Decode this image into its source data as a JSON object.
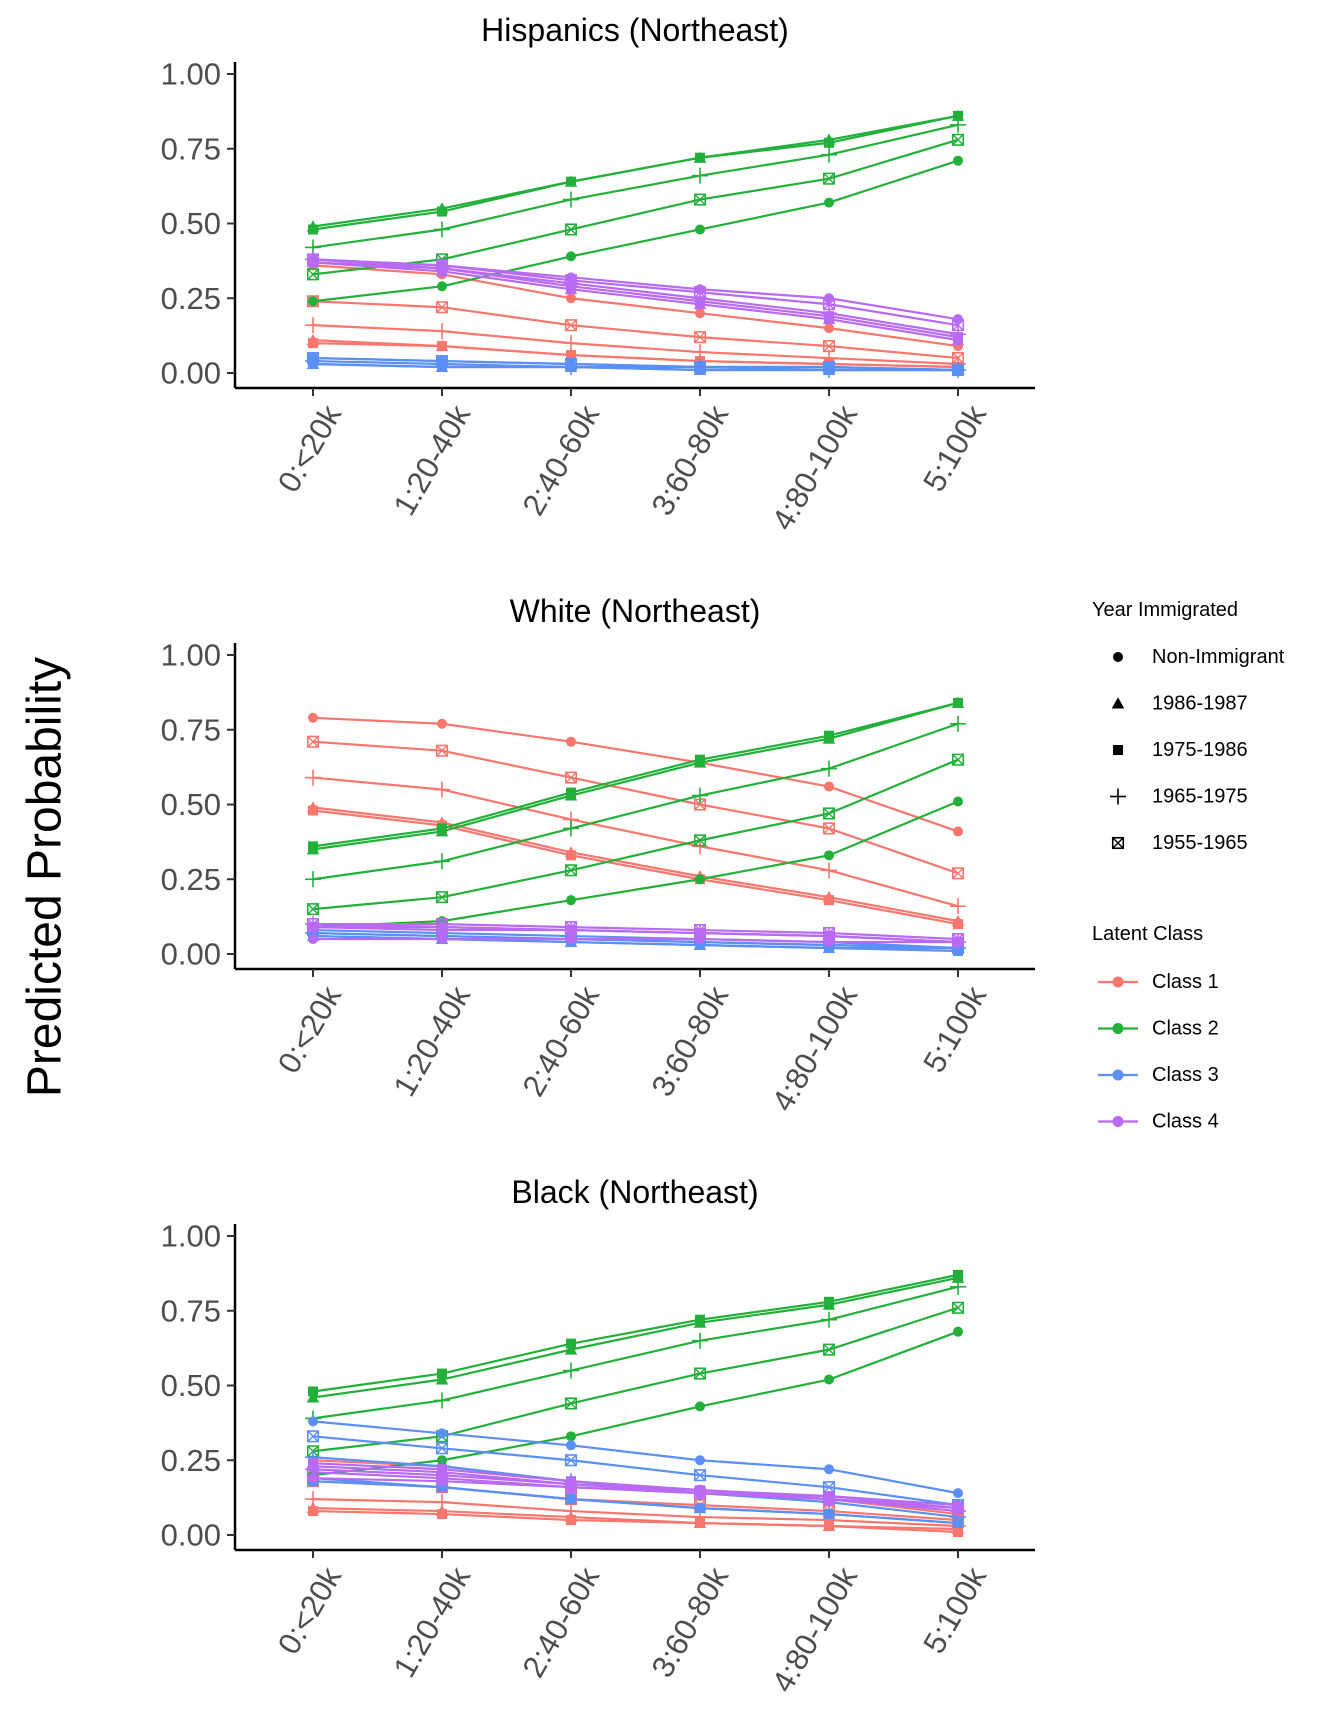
{
  "figure": {
    "ylabel": "Predicted Probability",
    "x_categories": [
      "0:<20k",
      "1:20-40k",
      "2:40-60k",
      "3:60-80k",
      "4:80-100k",
      "5:100k"
    ],
    "y_ticks": [
      "0.00",
      "0.25",
      "0.50",
      "0.75",
      "1.00"
    ],
    "legend_year": {
      "title": "Year Immigrated",
      "items": [
        {
          "label": "Non-Immigrant",
          "shape": "circle"
        },
        {
          "label": "1986-1987",
          "shape": "triangle"
        },
        {
          "label": "1975-1986",
          "shape": "square"
        },
        {
          "label": "1965-1975",
          "shape": "plus"
        },
        {
          "label": "1955-1965",
          "shape": "boxed-x"
        }
      ]
    },
    "legend_class": {
      "title": "Latent Class",
      "items": [
        {
          "label": "Class 1",
          "color": "#F8766D"
        },
        {
          "label": "Class 2",
          "color": "#22B03A"
        },
        {
          "label": "Class 3",
          "color": "#5B8FF6"
        },
        {
          "label": "Class 4",
          "color": "#B86BF2"
        }
      ]
    }
  },
  "chart_data": [
    {
      "type": "line",
      "title": "Hispanics (Northeast)",
      "xlabel": "",
      "ylabel": "Predicted Probability",
      "categories": [
        "0:<20k",
        "1:20-40k",
        "2:40-60k",
        "3:60-80k",
        "4:80-100k",
        "5:100k"
      ],
      "ylim": [
        0,
        1
      ],
      "grid": false,
      "series": [
        {
          "class": "Class 1",
          "year": "Non-Immigrant",
          "values": [
            0.36,
            0.33,
            0.25,
            0.2,
            0.15,
            0.09
          ]
        },
        {
          "class": "Class 1",
          "year": "1986-1987",
          "values": [
            0.11,
            0.09,
            0.06,
            0.04,
            0.03,
            0.02
          ]
        },
        {
          "class": "Class 1",
          "year": "1975-1986",
          "values": [
            0.1,
            0.09,
            0.06,
            0.04,
            0.03,
            0.02
          ]
        },
        {
          "class": "Class 1",
          "year": "1965-1975",
          "values": [
            0.16,
            0.14,
            0.1,
            0.07,
            0.05,
            0.03
          ]
        },
        {
          "class": "Class 1",
          "year": "1955-1965",
          "values": [
            0.24,
            0.22,
            0.16,
            0.12,
            0.09,
            0.05
          ]
        },
        {
          "class": "Class 2",
          "year": "Non-Immigrant",
          "values": [
            0.24,
            0.29,
            0.39,
            0.48,
            0.57,
            0.71
          ]
        },
        {
          "class": "Class 2",
          "year": "1986-1987",
          "values": [
            0.49,
            0.55,
            0.64,
            0.72,
            0.78,
            0.86
          ]
        },
        {
          "class": "Class 2",
          "year": "1975-1986",
          "values": [
            0.48,
            0.54,
            0.64,
            0.72,
            0.77,
            0.86
          ]
        },
        {
          "class": "Class 2",
          "year": "1965-1975",
          "values": [
            0.42,
            0.48,
            0.58,
            0.66,
            0.73,
            0.83
          ]
        },
        {
          "class": "Class 2",
          "year": "1955-1965",
          "values": [
            0.33,
            0.38,
            0.48,
            0.58,
            0.65,
            0.78
          ]
        },
        {
          "class": "Class 3",
          "year": "Non-Immigrant",
          "values": [
            0.05,
            0.04,
            0.03,
            0.02,
            0.02,
            0.01
          ]
        },
        {
          "class": "Class 3",
          "year": "1986-1987",
          "values": [
            0.03,
            0.02,
            0.02,
            0.01,
            0.01,
            0.01
          ]
        },
        {
          "class": "Class 3",
          "year": "1975-1986",
          "values": [
            0.03,
            0.02,
            0.02,
            0.01,
            0.01,
            0.01
          ]
        },
        {
          "class": "Class 3",
          "year": "1965-1975",
          "values": [
            0.04,
            0.03,
            0.02,
            0.02,
            0.01,
            0.01
          ]
        },
        {
          "class": "Class 3",
          "year": "1955-1965",
          "values": [
            0.05,
            0.04,
            0.03,
            0.02,
            0.02,
            0.01
          ]
        },
        {
          "class": "Class 4",
          "year": "Non-Immigrant",
          "values": [
            0.38,
            0.36,
            0.32,
            0.28,
            0.25,
            0.18
          ]
        },
        {
          "class": "Class 4",
          "year": "1986-1987",
          "values": [
            0.37,
            0.34,
            0.28,
            0.23,
            0.18,
            0.11
          ]
        },
        {
          "class": "Class 4",
          "year": "1975-1986",
          "values": [
            0.37,
            0.35,
            0.29,
            0.24,
            0.19,
            0.12
          ]
        },
        {
          "class": "Class 4",
          "year": "1965-1975",
          "values": [
            0.38,
            0.35,
            0.3,
            0.25,
            0.2,
            0.13
          ]
        },
        {
          "class": "Class 4",
          "year": "1955-1965",
          "values": [
            0.38,
            0.36,
            0.31,
            0.27,
            0.23,
            0.16
          ]
        }
      ]
    },
    {
      "type": "line",
      "title": "White (Northeast)",
      "xlabel": "",
      "ylabel": "Predicted Probability",
      "categories": [
        "0:<20k",
        "1:20-40k",
        "2:40-60k",
        "3:60-80k",
        "4:80-100k",
        "5:100k"
      ],
      "ylim": [
        0,
        1
      ],
      "grid": false,
      "series": [
        {
          "class": "Class 1",
          "year": "Non-Immigrant",
          "values": [
            0.79,
            0.77,
            0.71,
            0.64,
            0.56,
            0.41
          ]
        },
        {
          "class": "Class 1",
          "year": "1986-1987",
          "values": [
            0.49,
            0.44,
            0.34,
            0.26,
            0.19,
            0.11
          ]
        },
        {
          "class": "Class 1",
          "year": "1975-1986",
          "values": [
            0.48,
            0.43,
            0.33,
            0.25,
            0.18,
            0.1
          ]
        },
        {
          "class": "Class 1",
          "year": "1965-1975",
          "values": [
            0.59,
            0.55,
            0.45,
            0.36,
            0.28,
            0.16
          ]
        },
        {
          "class": "Class 1",
          "year": "1955-1965",
          "values": [
            0.71,
            0.68,
            0.59,
            0.5,
            0.42,
            0.27
          ]
        },
        {
          "class": "Class 2",
          "year": "Non-Immigrant",
          "values": [
            0.09,
            0.11,
            0.18,
            0.25,
            0.33,
            0.51
          ]
        },
        {
          "class": "Class 2",
          "year": "1986-1987",
          "values": [
            0.35,
            0.41,
            0.53,
            0.64,
            0.72,
            0.84
          ]
        },
        {
          "class": "Class 2",
          "year": "1975-1986",
          "values": [
            0.36,
            0.42,
            0.54,
            0.65,
            0.73,
            0.84
          ]
        },
        {
          "class": "Class 2",
          "year": "1965-1975",
          "values": [
            0.25,
            0.31,
            0.42,
            0.53,
            0.62,
            0.77
          ]
        },
        {
          "class": "Class 2",
          "year": "1955-1965",
          "values": [
            0.15,
            0.19,
            0.28,
            0.38,
            0.47,
            0.65
          ]
        },
        {
          "class": "Class 3",
          "year": "Non-Immigrant",
          "values": [
            0.07,
            0.06,
            0.05,
            0.04,
            0.03,
            0.02
          ]
        },
        {
          "class": "Class 3",
          "year": "1986-1987",
          "values": [
            0.06,
            0.05,
            0.04,
            0.03,
            0.02,
            0.02
          ]
        },
        {
          "class": "Class 3",
          "year": "1975-1986",
          "values": [
            0.06,
            0.05,
            0.04,
            0.03,
            0.02,
            0.01
          ]
        },
        {
          "class": "Class 3",
          "year": "1965-1975",
          "values": [
            0.07,
            0.06,
            0.05,
            0.04,
            0.03,
            0.02
          ]
        },
        {
          "class": "Class 3",
          "year": "1955-1965",
          "values": [
            0.08,
            0.07,
            0.06,
            0.05,
            0.04,
            0.02
          ]
        },
        {
          "class": "Class 4",
          "year": "Non-Immigrant",
          "values": [
            0.05,
            0.05,
            0.05,
            0.05,
            0.04,
            0.04
          ]
        },
        {
          "class": "Class 4",
          "year": "1986-1987",
          "values": [
            0.09,
            0.09,
            0.08,
            0.07,
            0.06,
            0.04
          ]
        },
        {
          "class": "Class 4",
          "year": "1975-1986",
          "values": [
            0.09,
            0.08,
            0.08,
            0.07,
            0.06,
            0.04
          ]
        },
        {
          "class": "Class 4",
          "year": "1965-1975",
          "values": [
            0.1,
            0.09,
            0.08,
            0.07,
            0.06,
            0.04
          ]
        },
        {
          "class": "Class 4",
          "year": "1955-1965",
          "values": [
            0.1,
            0.1,
            0.09,
            0.08,
            0.07,
            0.05
          ]
        }
      ]
    },
    {
      "type": "line",
      "title": "Black (Northeast)",
      "xlabel": "",
      "ylabel": "Predicted Probability",
      "categories": [
        "0:<20k",
        "1:20-40k",
        "2:40-60k",
        "3:60-80k",
        "4:80-100k",
        "5:100k"
      ],
      "ylim": [
        0,
        1
      ],
      "grid": false,
      "series": [
        {
          "class": "Class 1",
          "year": "Non-Immigrant",
          "values": [
            0.25,
            0.23,
            0.18,
            0.15,
            0.12,
            0.07
          ]
        },
        {
          "class": "Class 1",
          "year": "1986-1987",
          "values": [
            0.09,
            0.08,
            0.06,
            0.04,
            0.03,
            0.02
          ]
        },
        {
          "class": "Class 1",
          "year": "1975-1986",
          "values": [
            0.08,
            0.07,
            0.05,
            0.04,
            0.03,
            0.01
          ]
        },
        {
          "class": "Class 1",
          "year": "1965-1975",
          "values": [
            0.12,
            0.11,
            0.08,
            0.06,
            0.05,
            0.03
          ]
        },
        {
          "class": "Class 1",
          "year": "1955-1965",
          "values": [
            0.18,
            0.16,
            0.12,
            0.1,
            0.08,
            0.05
          ]
        },
        {
          "class": "Class 2",
          "year": "Non-Immigrant",
          "values": [
            0.2,
            0.25,
            0.33,
            0.43,
            0.52,
            0.68
          ]
        },
        {
          "class": "Class 2",
          "year": "1986-1987",
          "values": [
            0.46,
            0.52,
            0.62,
            0.71,
            0.77,
            0.86
          ]
        },
        {
          "class": "Class 2",
          "year": "1975-1986",
          "values": [
            0.48,
            0.54,
            0.64,
            0.72,
            0.78,
            0.87
          ]
        },
        {
          "class": "Class 2",
          "year": "1965-1975",
          "values": [
            0.39,
            0.45,
            0.55,
            0.65,
            0.72,
            0.83
          ]
        },
        {
          "class": "Class 2",
          "year": "1955-1965",
          "values": [
            0.28,
            0.33,
            0.44,
            0.54,
            0.62,
            0.76
          ]
        },
        {
          "class": "Class 3",
          "year": "Non-Immigrant",
          "values": [
            0.38,
            0.34,
            0.3,
            0.25,
            0.22,
            0.14
          ]
        },
        {
          "class": "Class 3",
          "year": "1986-1987",
          "values": [
            0.19,
            0.16,
            0.12,
            0.09,
            0.07,
            0.04
          ]
        },
        {
          "class": "Class 3",
          "year": "1975-1986",
          "values": [
            0.18,
            0.16,
            0.12,
            0.09,
            0.07,
            0.04
          ]
        },
        {
          "class": "Class 3",
          "year": "1965-1975",
          "values": [
            0.26,
            0.23,
            0.18,
            0.14,
            0.11,
            0.06
          ]
        },
        {
          "class": "Class 3",
          "year": "1955-1965",
          "values": [
            0.33,
            0.29,
            0.25,
            0.2,
            0.16,
            0.1
          ]
        },
        {
          "class": "Class 4",
          "year": "Non-Immigrant",
          "values": [
            0.19,
            0.18,
            0.16,
            0.14,
            0.13,
            0.1
          ]
        },
        {
          "class": "Class 4",
          "year": "1986-1987",
          "values": [
            0.23,
            0.21,
            0.17,
            0.15,
            0.12,
            0.09
          ]
        },
        {
          "class": "Class 4",
          "year": "1975-1986",
          "values": [
            0.24,
            0.22,
            0.18,
            0.15,
            0.13,
            0.09
          ]
        },
        {
          "class": "Class 4",
          "year": "1965-1975",
          "values": [
            0.22,
            0.2,
            0.17,
            0.14,
            0.12,
            0.08
          ]
        },
        {
          "class": "Class 4",
          "year": "1955-1965",
          "values": [
            0.21,
            0.19,
            0.16,
            0.14,
            0.12,
            0.09
          ]
        }
      ]
    }
  ]
}
